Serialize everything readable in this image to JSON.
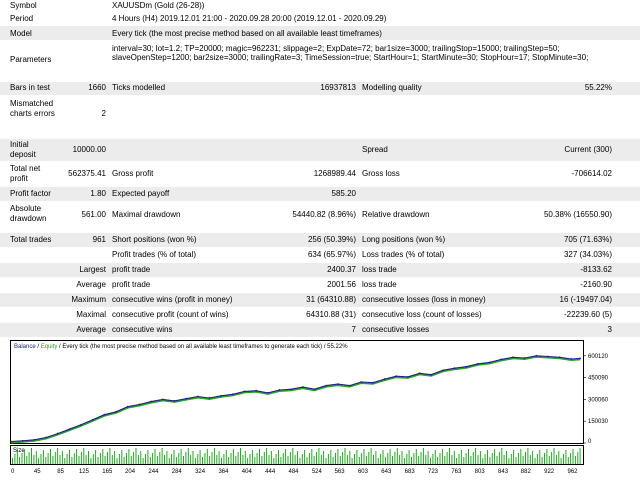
{
  "report": {
    "symbol": {
      "label": "Symbol",
      "value": "XAUUSDm (Gold (26-28))"
    },
    "period": {
      "label": "Period",
      "value": "4 Hours (H4) 2019.12.01 21:00 - 2020.09.28 20:00 (2019.12.01 - 2020.09.29)"
    },
    "model": {
      "label": "Model",
      "value": "Every tick (the most precise method based on all available least timeframes)"
    },
    "parameters": {
      "label": "Parameters",
      "value": "interval=30; lot=1.2; TP=20000; magic=962231; slippage=2; ExpDate=72; bar1size=3000; trailingStop=15000; trailingStep=50; slaveOpenStep=1200; bar2size=3000; trailingRate=3; TimeSession=true; StartHour=1; StartMinute=30; StopHour=17; StopMinute=30;"
    },
    "bars": {
      "label": "Bars in test",
      "value": "1660",
      "label2": "Ticks modelled",
      "value2": "16937813",
      "label3": "Modelling quality",
      "value3": "55.22%"
    },
    "mismatched": {
      "label": "Mismatched charts errors",
      "value": "2"
    },
    "deposit": {
      "label": "Initial deposit",
      "value": "10000.00",
      "label2": "Spread",
      "value2": "Current (300)"
    },
    "netprofit": {
      "label": "Total net profit",
      "value": "562375.41",
      "label2": "Gross profit",
      "value2": "1268989.44",
      "label3": "Gross loss",
      "value3": "-706614.02"
    },
    "profitfactor": {
      "label": "Profit factor",
      "value": "1.80",
      "label2": "Expected payoff",
      "value2": "585.20"
    },
    "absdd": {
      "label": "Absolute drawdown",
      "value": "561.00",
      "label2": "Maximal drawdown",
      "value2": "54440.82 (8.96%)",
      "label3": "Relative drawdown",
      "value3": "50.38% (16550.90)"
    },
    "trades": {
      "label": "Total trades",
      "value": "961",
      "label2": "Short positions (won %)",
      "value2": "256 (50.39%)",
      "label3": "Long positions (won %)",
      "value3": "705 (71.63%)"
    },
    "profittrades": {
      "label2": "Profit trades (% of total)",
      "value2": "634 (65.97%)",
      "label3": "Loss trades (% of total)",
      "value3": "327 (34.03%)"
    },
    "largest": {
      "label": "Largest",
      "label2": "profit trade",
      "value2": "2400.37",
      "label3": "loss trade",
      "value3": "-8133.62"
    },
    "average": {
      "label": "Average",
      "label2": "profit trade",
      "value2": "2001.56",
      "label3": "loss trade",
      "value3": "-2160.90"
    },
    "maxwins": {
      "label": "Maximum",
      "label2": "consecutive wins (profit in money)",
      "value2": "31 (64310.88)",
      "label3": "consecutive losses (loss in money)",
      "value3": "16 (-19497.04)"
    },
    "maximal": {
      "label": "Maximal",
      "label2": "consecutive profit (count of wins)",
      "value2": "64310.88 (31)",
      "label3": "consecutive loss (count of losses)",
      "value3": "-22239.60 (5)"
    },
    "avgcons": {
      "label": "Average",
      "label2": "consecutive wins",
      "value2": "7",
      "label3": "consecutive losses",
      "value3": "3"
    }
  },
  "chart": {
    "legend_balance": "Balance",
    "legend_sep1": " / ",
    "legend_equity": "Equity",
    "legend_rest": " / Every tick (the most precise method based on all available least timeframes to generate each tick) / 55.22%",
    "size_label": "Size",
    "colors": {
      "balance": "#1a237e",
      "equity": "#2e9e2e",
      "volume": "#22aa22",
      "frame": "#000000"
    }
  },
  "chart_data": {
    "type": "line",
    "x_ticks": [
      "0",
      "45",
      "85",
      "125",
      "165",
      "204",
      "244",
      "284",
      "324",
      "364",
      "404",
      "444",
      "484",
      "524",
      "563",
      "603",
      "643",
      "683",
      "723",
      "763",
      "803",
      "843",
      "882",
      "922",
      "962"
    ],
    "y_ticks": [
      "600120",
      "450090",
      "300060",
      "150030",
      "0"
    ],
    "ylim": [
      0,
      640000
    ],
    "xlim": [
      0,
      980
    ],
    "series": [
      {
        "name": "Balance",
        "x": [
          0,
          20,
          40,
          60,
          80,
          100,
          120,
          140,
          160,
          180,
          200,
          220,
          240,
          260,
          280,
          300,
          320,
          340,
          360,
          380,
          400,
          420,
          440,
          460,
          480,
          500,
          520,
          540,
          560,
          580,
          600,
          620,
          640,
          660,
          680,
          700,
          720,
          740,
          760,
          780,
          800,
          820,
          840,
          860,
          880,
          900,
          920,
          940,
          960,
          975
        ],
        "y": [
          10000,
          15000,
          22000,
          38000,
          65000,
          95000,
          125000,
          160000,
          195000,
          215000,
          250000,
          265000,
          285000,
          300000,
          290000,
          305000,
          320000,
          310000,
          325000,
          335000,
          355000,
          360000,
          345000,
          365000,
          370000,
          385000,
          370000,
          395000,
          405000,
          395000,
          420000,
          415000,
          440000,
          460000,
          455000,
          480000,
          470000,
          500000,
          515000,
          525000,
          545000,
          555000,
          575000,
          590000,
          585000,
          600000,
          595000,
          590000,
          578000,
          582000
        ]
      }
    ],
    "volume_bars": 240
  }
}
